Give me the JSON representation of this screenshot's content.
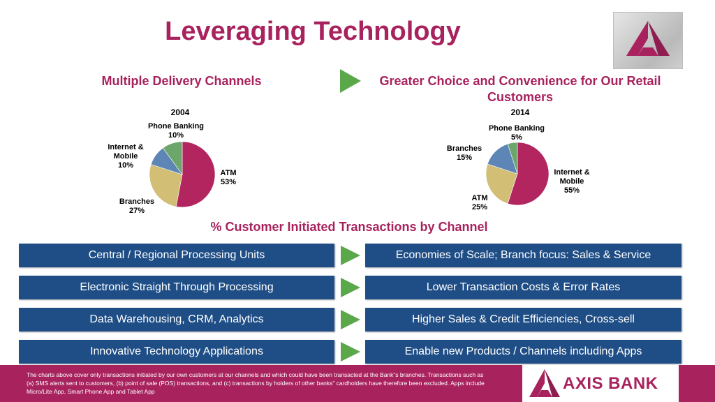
{
  "title": "Leveraging Technology",
  "left_heading": "Multiple Delivery Channels",
  "right_heading": "Greater Choice and Convenience for Our Retail Customers",
  "colors": {
    "brand": "#A8225E",
    "bar": "#1F4E86",
    "arrow": "#5AA84A"
  },
  "chart_data": [
    {
      "type": "pie",
      "title": "2004",
      "slices": [
        {
          "label": "ATM",
          "value": 53,
          "display": "53%",
          "color": "#B2255F"
        },
        {
          "label": "Branches",
          "value": 27,
          "display": "27%",
          "color": "#D2BE74"
        },
        {
          "label": "Internet & Mobile",
          "value": 10,
          "display": "10%",
          "color": "#5D86B6"
        },
        {
          "label": "Phone Banking",
          "value": 10,
          "display": "10%",
          "color": "#6CA66B"
        }
      ]
    },
    {
      "type": "pie",
      "title": "2014",
      "slices": [
        {
          "label": "Internet & Mobile",
          "value": 55,
          "display": "55%",
          "color": "#B2255F"
        },
        {
          "label": "ATM",
          "value": 25,
          "display": "25%",
          "color": "#D2BE74"
        },
        {
          "label": "Branches",
          "value": 15,
          "display": "15%",
          "color": "#5D86B6"
        },
        {
          "label": "Phone Banking",
          "value": 5,
          "display": "5%",
          "color": "#6CA66B"
        }
      ]
    }
  ],
  "pie_labels": {
    "c2004": {
      "phone": [
        "Phone Banking",
        "10%"
      ],
      "internet": [
        "Internet &",
        "Mobile",
        "10%"
      ],
      "atm": [
        "ATM",
        "53%"
      ],
      "branches": [
        "Branches",
        "27%"
      ]
    },
    "c2014": {
      "phone": [
        "Phone Banking",
        "5%"
      ],
      "branches": [
        "Branches",
        "15%"
      ],
      "internet": [
        "Internet &",
        "Mobile",
        "55%"
      ],
      "atm": [
        "ATM",
        "25%"
      ]
    }
  },
  "chart_caption": "% Customer Initiated Transactions by Channel",
  "rows": [
    {
      "left": "Central / Regional Processing Units",
      "right": "Economies of Scale; Branch focus: Sales & Service"
    },
    {
      "left": "Electronic Straight Through Processing",
      "right": "Lower Transaction Costs & Error Rates"
    },
    {
      "left": "Data Warehousing, CRM, Analytics",
      "right": "Higher Sales & Credit Efficiencies, Cross-sell"
    },
    {
      "left": "Innovative Technology Applications",
      "right": "Enable new Products / Channels including Apps"
    }
  ],
  "footnote": "The charts above cover only transactions initiated by our own customers at our channels and which could have been transacted at the Bank”s branches. Transactions such as (a) SMS alerts sent to customers, (b) point of sale (POS) transactions, and (c) transactions by holders of other banks” cardholders have therefore been excluded. Apps include Micro/Lite App, Smart Phone App and Tablet App",
  "brand_name": "AXIS BANK"
}
